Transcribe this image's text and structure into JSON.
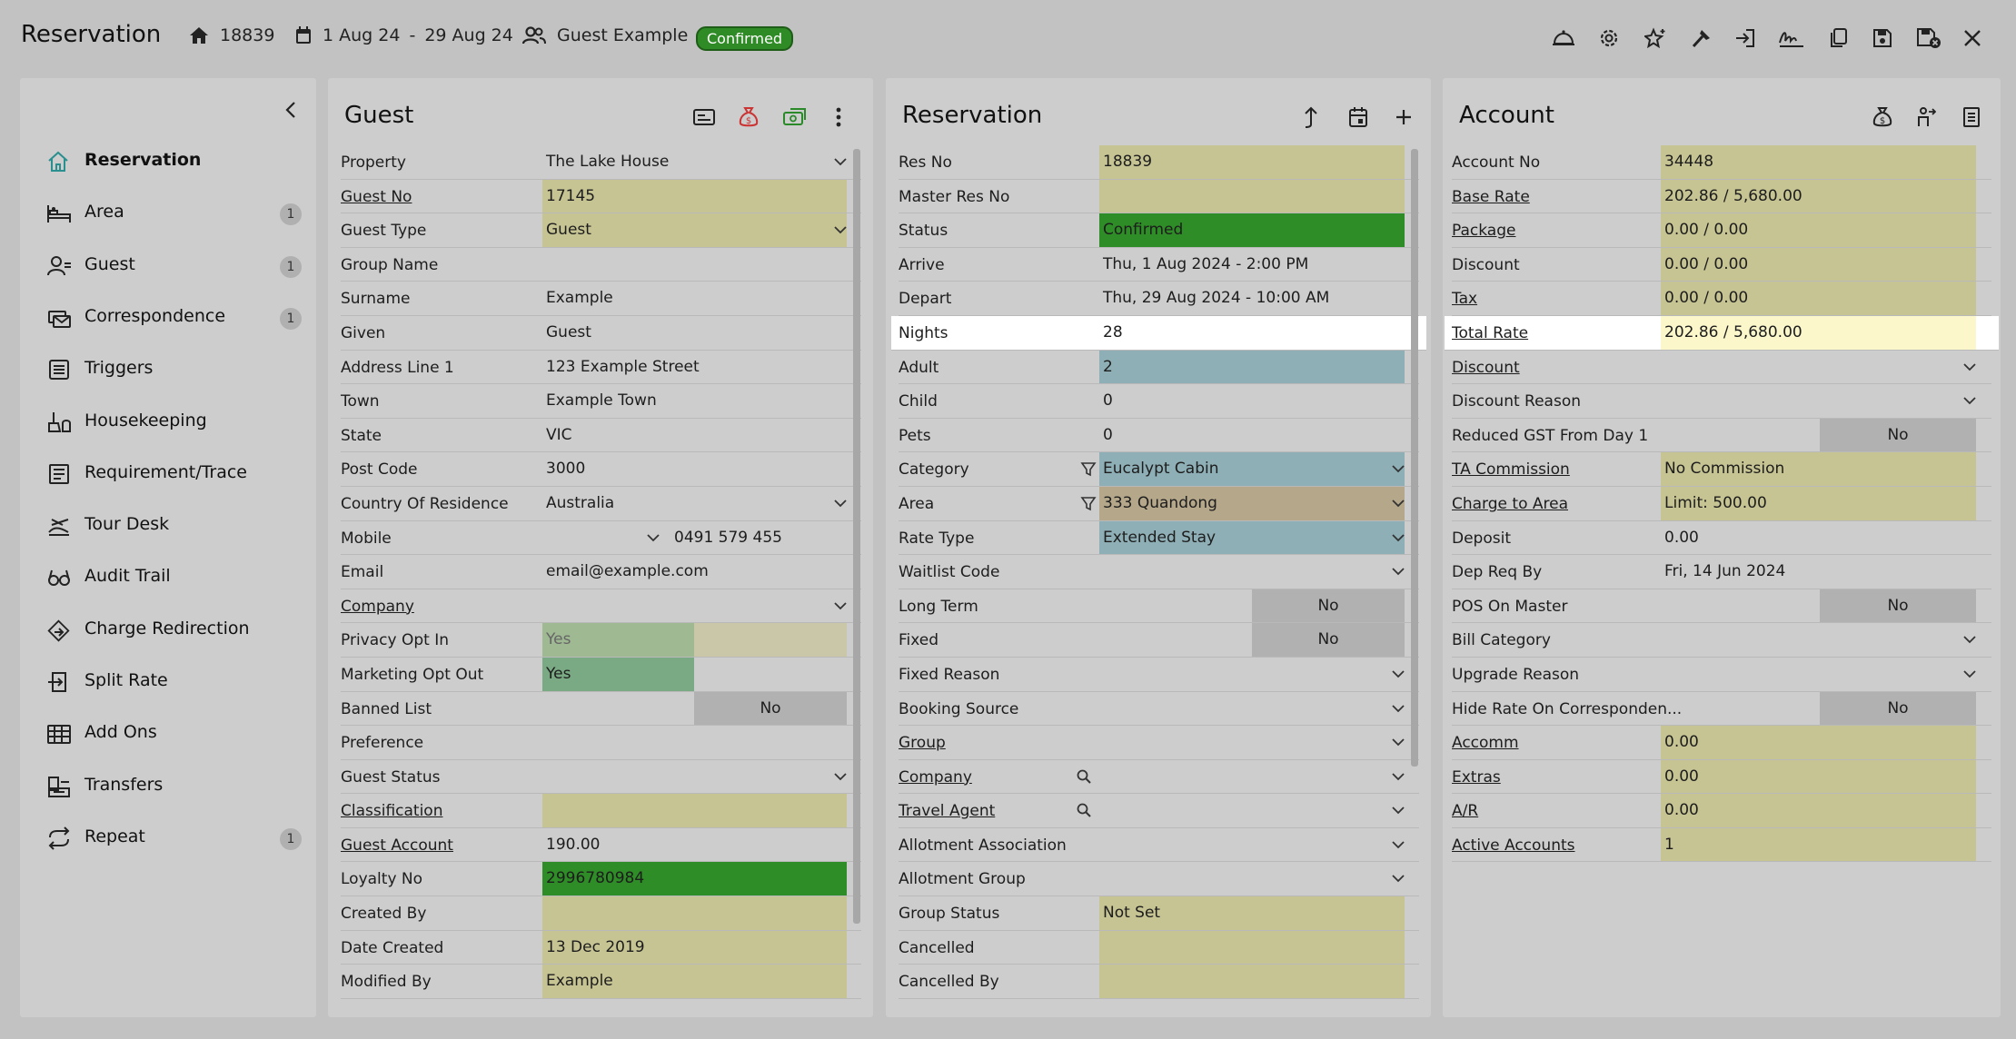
{
  "header": {
    "title": "Reservation",
    "res_no": "18839",
    "date_from": "1 Aug 24",
    "date_sep": "-",
    "date_to": "29 Aug 24",
    "guest": "Guest Example",
    "status": "Confirmed"
  },
  "toolbar": [
    "bell-icon",
    "settings-icon",
    "magic-icon",
    "hammer-icon",
    "check-in-icon",
    "signature-icon",
    "copy-icon",
    "save-icon",
    "save-close-icon",
    "close-icon"
  ],
  "sidebar": {
    "items": [
      {
        "label": "Reservation",
        "count": ""
      },
      {
        "label": "Area",
        "count": "1"
      },
      {
        "label": "Guest",
        "count": "1"
      },
      {
        "label": "Correspondence",
        "count": "1"
      },
      {
        "label": "Triggers",
        "count": ""
      },
      {
        "label": "Housekeeping",
        "count": ""
      },
      {
        "label": "Requirement/Trace",
        "count": ""
      },
      {
        "label": "Tour Desk",
        "count": ""
      },
      {
        "label": "Audit Trail",
        "count": ""
      },
      {
        "label": "Charge Redirection",
        "count": ""
      },
      {
        "label": "Split Rate",
        "count": ""
      },
      {
        "label": "Add Ons",
        "count": ""
      },
      {
        "label": "Transfers",
        "count": ""
      },
      {
        "label": "Repeat",
        "count": "1"
      }
    ]
  },
  "guest": {
    "title": "Guest",
    "rows": [
      {
        "k": "Property",
        "v": "The Lake House"
      },
      {
        "k": "Guest No",
        "v": "17145"
      },
      {
        "k": "Guest Type",
        "v": "Guest"
      },
      {
        "k": "Group Name",
        "v": ""
      },
      {
        "k": "Surname",
        "v": "Example"
      },
      {
        "k": "Given",
        "v": "Guest"
      },
      {
        "k": "Address Line 1",
        "v": "123 Example Street"
      },
      {
        "k": "Town",
        "v": "Example Town"
      },
      {
        "k": "State",
        "v": "VIC"
      },
      {
        "k": "Post Code",
        "v": "3000"
      },
      {
        "k": "Country Of Residence",
        "v": "Australia"
      },
      {
        "k": "Mobile",
        "v": "0491 579 455"
      },
      {
        "k": "Email",
        "v": "email@example.com"
      },
      {
        "k": "Company",
        "v": ""
      },
      {
        "k": "Privacy Opt In",
        "v": "Yes"
      },
      {
        "k": "Marketing Opt Out",
        "v": "Yes"
      },
      {
        "k": "Banned List",
        "v": "No"
      },
      {
        "k": "Preference",
        "v": ""
      },
      {
        "k": "Guest Status",
        "v": ""
      },
      {
        "k": "Classification",
        "v": ""
      },
      {
        "k": "Guest Account",
        "v": "190.00"
      },
      {
        "k": "Loyalty No",
        "v": "2996780984"
      },
      {
        "k": "Created By",
        "v": ""
      },
      {
        "k": "Date Created",
        "v": "13 Dec 2019"
      },
      {
        "k": "Modified By",
        "v": "Example"
      }
    ]
  },
  "reservation": {
    "title": "Reservation",
    "rows": [
      {
        "k": "Res No",
        "v": "18839"
      },
      {
        "k": "Master Res No",
        "v": ""
      },
      {
        "k": "Status",
        "v": "Confirmed"
      },
      {
        "k": "Arrive",
        "v": "Thu, 1 Aug 2024 - 2:00 PM"
      },
      {
        "k": "Depart",
        "v": "Thu, 29 Aug 2024 - 10:00 AM"
      },
      {
        "k": "Nights",
        "v": "28"
      },
      {
        "k": "Adult",
        "v": "2"
      },
      {
        "k": "Child",
        "v": "0"
      },
      {
        "k": "Pets",
        "v": "0"
      },
      {
        "k": "Category",
        "v": "Eucalypt Cabin"
      },
      {
        "k": "Area",
        "v": "333 Quandong"
      },
      {
        "k": "Rate Type",
        "v": "Extended Stay"
      },
      {
        "k": "Waitlist Code",
        "v": ""
      },
      {
        "k": "Long Term",
        "v": "No"
      },
      {
        "k": "Fixed",
        "v": "No"
      },
      {
        "k": "Fixed Reason",
        "v": ""
      },
      {
        "k": "Booking Source",
        "v": ""
      },
      {
        "k": "Group",
        "v": ""
      },
      {
        "k": "Company",
        "v": ""
      },
      {
        "k": "Travel Agent",
        "v": ""
      },
      {
        "k": "Allotment Association",
        "v": ""
      },
      {
        "k": "Allotment Group",
        "v": ""
      },
      {
        "k": "Group Status",
        "v": "Not Set"
      },
      {
        "k": "Cancelled",
        "v": ""
      },
      {
        "k": "Cancelled By",
        "v": ""
      }
    ]
  },
  "account": {
    "title": "Account",
    "rows": [
      {
        "k": "Account No",
        "v": "34448"
      },
      {
        "k": "Base Rate",
        "v": "202.86 / 5,680.00"
      },
      {
        "k": "Package",
        "v": "0.00 / 0.00"
      },
      {
        "k": "Discount",
        "v": "0.00 / 0.00"
      },
      {
        "k": "Tax",
        "v": "0.00 / 0.00"
      },
      {
        "k": "Total Rate",
        "v": "202.86 / 5,680.00"
      },
      {
        "k": "Discount",
        "v": ""
      },
      {
        "k": "Discount Reason",
        "v": ""
      },
      {
        "k": "Reduced GST From Day 1",
        "v": "No"
      },
      {
        "k": "TA Commission",
        "v": "No Commission"
      },
      {
        "k": "Charge to Area",
        "v": "Limit: 500.00"
      },
      {
        "k": "Deposit",
        "v": "0.00"
      },
      {
        "k": "Dep Req By",
        "v": "Fri, 14 Jun 2024"
      },
      {
        "k": "POS On Master",
        "v": "No"
      },
      {
        "k": "Bill Category",
        "v": ""
      },
      {
        "k": "Upgrade Reason",
        "v": ""
      },
      {
        "k": "Hide Rate On Corresponden...",
        "v": "No"
      },
      {
        "k": "Accomm",
        "v": "0.00"
      },
      {
        "k": "Extras",
        "v": "0.00"
      },
      {
        "k": "A/R",
        "v": "0.00"
      },
      {
        "k": "Active Accounts",
        "v": "1"
      }
    ]
  }
}
